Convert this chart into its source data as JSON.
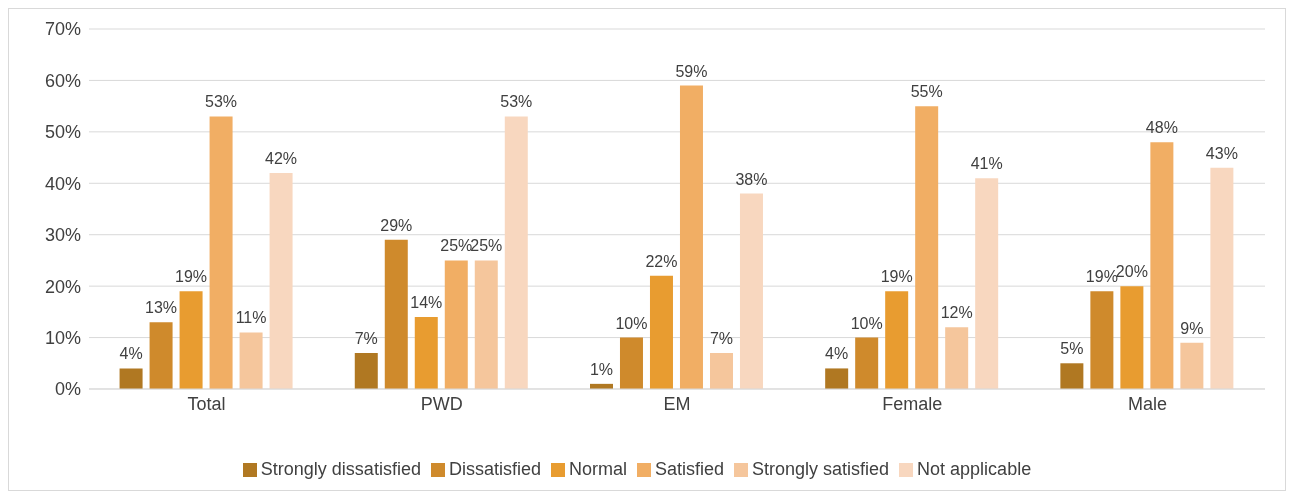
{
  "chart_data": {
    "type": "bar",
    "categories": [
      "Total",
      "PWD",
      "EM",
      "Female",
      "Male"
    ],
    "series": [
      {
        "name": "Strongly dissatisfied",
        "color": "#b07822",
        "values": [
          4,
          7,
          1,
          4,
          5
        ],
        "value_labels": [
          "4%",
          "7%",
          "1%",
          "4%",
          "5%"
        ]
      },
      {
        "name": "Dissatisfied",
        "color": "#cf8a2c",
        "values": [
          13,
          29,
          10,
          10,
          19
        ],
        "value_labels": [
          "13%",
          "29%",
          "10%",
          "10%",
          "19%"
        ]
      },
      {
        "name": "Normal",
        "color": "#e89c30",
        "values": [
          19,
          14,
          22,
          19,
          20
        ],
        "value_labels": [
          "19%",
          "14%",
          "22%",
          "19%",
          "20%"
        ]
      },
      {
        "name": "Satisfied",
        "color": "#f1ae64",
        "values": [
          53,
          25,
          59,
          55,
          48
        ],
        "value_labels": [
          "53%",
          "25%",
          "59%",
          "55%",
          "48%"
        ]
      },
      {
        "name": "Strongly satisfied",
        "color": "#f5c69c",
        "values": [
          11,
          25,
          7,
          12,
          9
        ],
        "value_labels": [
          "11%",
          "25%",
          "7%",
          "12%",
          "9%"
        ]
      },
      {
        "name": "Not applicable",
        "color": "#f8d7bf",
        "values": [
          42,
          53,
          38,
          41,
          43
        ],
        "value_labels": [
          "42%",
          "53%",
          "38%",
          "41%",
          "43%"
        ]
      }
    ],
    "ylim": [
      0,
      70
    ],
    "yticks": [
      {
        "value": 0,
        "label": "0%"
      },
      {
        "value": 10,
        "label": "10%"
      },
      {
        "value": 20,
        "label": "20%"
      },
      {
        "value": 30,
        "label": "30%"
      },
      {
        "value": 40,
        "label": "40%"
      },
      {
        "value": 50,
        "label": "50%"
      },
      {
        "value": 60,
        "label": "60%"
      },
      {
        "value": 70,
        "label": "70%"
      }
    ],
    "grid": "y",
    "legend": "bottom"
  }
}
